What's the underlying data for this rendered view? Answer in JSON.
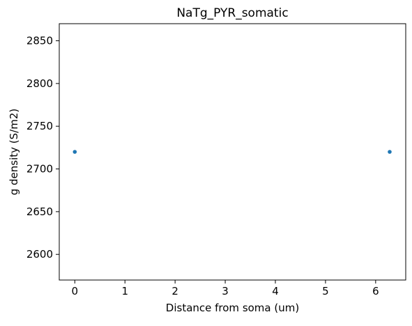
{
  "chart_data": {
    "type": "scatter",
    "title": "NaTg_PYR_somatic",
    "xlabel": "Distance from soma (um)",
    "ylabel": "g density (S/m2)",
    "xlim": [
      -0.31,
      6.6
    ],
    "ylim": [
      2570,
      2870
    ],
    "xticks": [
      0,
      1,
      2,
      3,
      4,
      5,
      6
    ],
    "yticks": [
      2600,
      2650,
      2700,
      2750,
      2800,
      2850
    ],
    "grid": false,
    "legend": null,
    "series": [
      {
        "color": "#1f77b4",
        "points": [
          {
            "x": 0,
            "y": 2720
          },
          {
            "x": 6.28,
            "y": 2720
          }
        ]
      }
    ]
  }
}
